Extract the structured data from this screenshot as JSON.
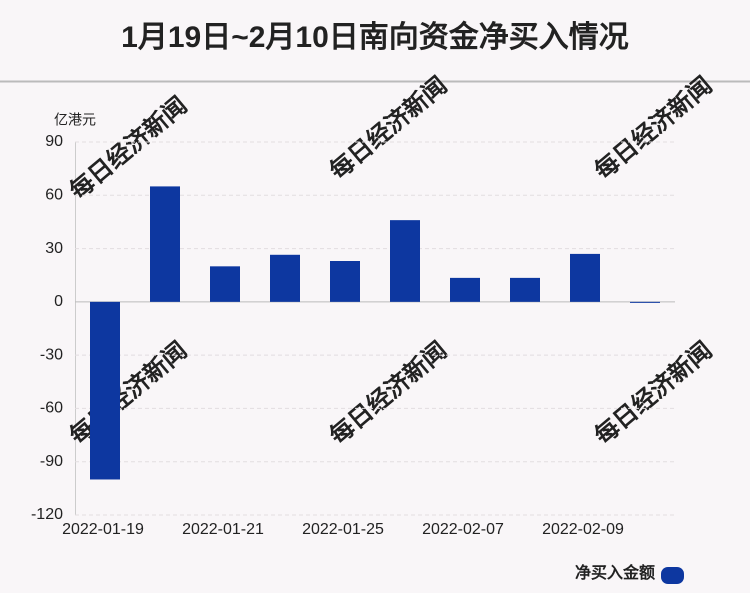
{
  "chart_data": {
    "type": "bar",
    "title": "1月19日~2月10日南向资金净买入情况",
    "y_unit": "亿港元",
    "watermark": "每日经济新闻",
    "categories": [
      "2022-01-19",
      null,
      "2022-01-21",
      null,
      "2022-01-25",
      null,
      "2022-02-07",
      null,
      "2022-02-09",
      null
    ],
    "series": [
      {
        "name": "净买入金额",
        "color": "#0d37a0",
        "values": [
          -100,
          65,
          20,
          26.5,
          23,
          46,
          13.5,
          13.5,
          27,
          -0.5
        ]
      }
    ],
    "ylim": [
      -120,
      90
    ],
    "yticks": [
      -120,
      -90,
      -60,
      -30,
      0,
      30,
      60,
      90
    ],
    "grid": true,
    "legend": "bottom-right"
  }
}
